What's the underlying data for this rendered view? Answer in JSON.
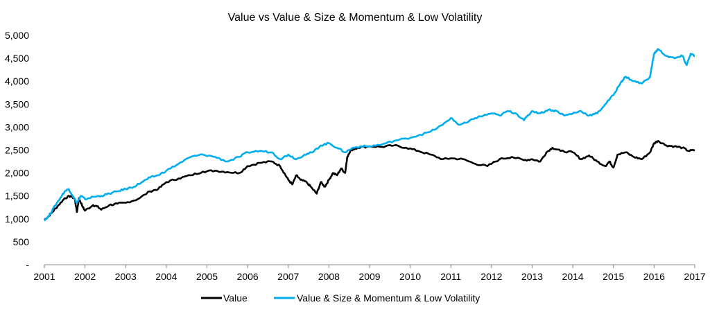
{
  "chart_data": {
    "type": "line",
    "title": "Value vs Value & Size & Momentum & Low Volatility",
    "xlabel": "",
    "ylabel": "",
    "xlim": [
      2001,
      2017
    ],
    "ylim": [
      0,
      5000
    ],
    "x_ticks": [
      2001,
      2002,
      2003,
      2004,
      2005,
      2006,
      2007,
      2008,
      2009,
      2010,
      2011,
      2012,
      2013,
      2014,
      2015,
      2016,
      2017
    ],
    "y_ticks": [
      {
        "value": 0,
        "label": "-"
      },
      {
        "value": 500,
        "label": "500"
      },
      {
        "value": 1000,
        "label": "1,000"
      },
      {
        "value": 1500,
        "label": "1,500"
      },
      {
        "value": 2000,
        "label": "2,000"
      },
      {
        "value": 2500,
        "label": "2,500"
      },
      {
        "value": 3000,
        "label": "3,000"
      },
      {
        "value": 3500,
        "label": "3,500"
      },
      {
        "value": 4000,
        "label": "4,000"
      },
      {
        "value": 4500,
        "label": "4,500"
      },
      {
        "value": 5000,
        "label": "5,000"
      }
    ],
    "grid": false,
    "legend_position": "bottom",
    "series": [
      {
        "name": "Value",
        "color": "#000000",
        "points": [
          [
            2001.0,
            980
          ],
          [
            2001.1,
            1050
          ],
          [
            2001.2,
            1150
          ],
          [
            2001.35,
            1300
          ],
          [
            2001.5,
            1450
          ],
          [
            2001.65,
            1500
          ],
          [
            2001.75,
            1430
          ],
          [
            2001.8,
            1150
          ],
          [
            2001.85,
            1450
          ],
          [
            2001.95,
            1250
          ],
          [
            2002.0,
            1180
          ],
          [
            2002.2,
            1300
          ],
          [
            2002.3,
            1270
          ],
          [
            2002.4,
            1200
          ],
          [
            2002.6,
            1300
          ],
          [
            2002.8,
            1330
          ],
          [
            2003.0,
            1350
          ],
          [
            2003.3,
            1430
          ],
          [
            2003.6,
            1600
          ],
          [
            2003.8,
            1650
          ],
          [
            2004.0,
            1800
          ],
          [
            2004.3,
            1880
          ],
          [
            2004.6,
            1950
          ],
          [
            2004.9,
            2030
          ],
          [
            2005.2,
            2050
          ],
          [
            2005.5,
            2020
          ],
          [
            2005.8,
            2000
          ],
          [
            2006.0,
            2150
          ],
          [
            2006.3,
            2220
          ],
          [
            2006.6,
            2250
          ],
          [
            2006.8,
            2150
          ],
          [
            2006.9,
            2000
          ],
          [
            2007.0,
            1850
          ],
          [
            2007.1,
            1750
          ],
          [
            2007.2,
            1950
          ],
          [
            2007.3,
            1850
          ],
          [
            2007.45,
            1800
          ],
          [
            2007.6,
            1650
          ],
          [
            2007.7,
            1550
          ],
          [
            2007.8,
            1800
          ],
          [
            2007.9,
            1700
          ],
          [
            2008.0,
            1850
          ],
          [
            2008.1,
            2000
          ],
          [
            2008.2,
            1950
          ],
          [
            2008.3,
            2100
          ],
          [
            2008.4,
            2000
          ],
          [
            2008.45,
            2350
          ],
          [
            2008.55,
            2500
          ],
          [
            2008.7,
            2550
          ],
          [
            2009.0,
            2580
          ],
          [
            2009.3,
            2570
          ],
          [
            2009.6,
            2600
          ],
          [
            2009.9,
            2550
          ],
          [
            2010.2,
            2480
          ],
          [
            2010.5,
            2400
          ],
          [
            2010.8,
            2300
          ],
          [
            2011.0,
            2320
          ],
          [
            2011.3,
            2300
          ],
          [
            2011.6,
            2200
          ],
          [
            2011.9,
            2150
          ],
          [
            2012.2,
            2300
          ],
          [
            2012.5,
            2350
          ],
          [
            2012.8,
            2280
          ],
          [
            2013.0,
            2300
          ],
          [
            2013.2,
            2250
          ],
          [
            2013.35,
            2450
          ],
          [
            2013.5,
            2550
          ],
          [
            2013.7,
            2480
          ],
          [
            2014.0,
            2450
          ],
          [
            2014.2,
            2300
          ],
          [
            2014.4,
            2380
          ],
          [
            2014.6,
            2250
          ],
          [
            2014.8,
            2150
          ],
          [
            2014.9,
            2250
          ],
          [
            2015.0,
            2120
          ],
          [
            2015.1,
            2400
          ],
          [
            2015.3,
            2450
          ],
          [
            2015.5,
            2350
          ],
          [
            2015.7,
            2300
          ],
          [
            2015.9,
            2450
          ],
          [
            2016.0,
            2650
          ],
          [
            2016.1,
            2700
          ],
          [
            2016.3,
            2600
          ],
          [
            2016.5,
            2580
          ],
          [
            2016.7,
            2550
          ],
          [
            2016.85,
            2480
          ],
          [
            2017.0,
            2500
          ]
        ]
      },
      {
        "name": "Value & Size & Momentum & Low Volatility",
        "color": "#00AEEF",
        "points": [
          [
            2001.0,
            980
          ],
          [
            2001.1,
            1050
          ],
          [
            2001.2,
            1200
          ],
          [
            2001.35,
            1400
          ],
          [
            2001.5,
            1600
          ],
          [
            2001.6,
            1650
          ],
          [
            2001.7,
            1500
          ],
          [
            2001.8,
            1350
          ],
          [
            2001.9,
            1500
          ],
          [
            2002.0,
            1430
          ],
          [
            2002.2,
            1480
          ],
          [
            2002.4,
            1500
          ],
          [
            2002.6,
            1550
          ],
          [
            2002.8,
            1600
          ],
          [
            2003.0,
            1650
          ],
          [
            2003.2,
            1700
          ],
          [
            2003.4,
            1800
          ],
          [
            2003.6,
            1900
          ],
          [
            2003.8,
            1950
          ],
          [
            2004.0,
            2050
          ],
          [
            2004.3,
            2200
          ],
          [
            2004.6,
            2350
          ],
          [
            2004.9,
            2400
          ],
          [
            2005.2,
            2350
          ],
          [
            2005.5,
            2250
          ],
          [
            2005.8,
            2350
          ],
          [
            2006.0,
            2450
          ],
          [
            2006.3,
            2480
          ],
          [
            2006.6,
            2450
          ],
          [
            2006.8,
            2300
          ],
          [
            2007.0,
            2400
          ],
          [
            2007.2,
            2300
          ],
          [
            2007.4,
            2400
          ],
          [
            2007.6,
            2450
          ],
          [
            2007.8,
            2600
          ],
          [
            2008.0,
            2650
          ],
          [
            2008.2,
            2550
          ],
          [
            2008.4,
            2450
          ],
          [
            2008.6,
            2550
          ],
          [
            2008.8,
            2580
          ],
          [
            2009.0,
            2580
          ],
          [
            2009.3,
            2620
          ],
          [
            2009.6,
            2700
          ],
          [
            2009.9,
            2750
          ],
          [
            2010.2,
            2820
          ],
          [
            2010.5,
            2900
          ],
          [
            2010.8,
            3050
          ],
          [
            2011.0,
            3200
          ],
          [
            2011.2,
            3050
          ],
          [
            2011.4,
            3100
          ],
          [
            2011.6,
            3200
          ],
          [
            2011.8,
            3250
          ],
          [
            2012.0,
            3300
          ],
          [
            2012.2,
            3250
          ],
          [
            2012.4,
            3350
          ],
          [
            2012.6,
            3300
          ],
          [
            2012.8,
            3150
          ],
          [
            2013.0,
            3350
          ],
          [
            2013.2,
            3300
          ],
          [
            2013.4,
            3380
          ],
          [
            2013.6,
            3350
          ],
          [
            2013.8,
            3250
          ],
          [
            2014.0,
            3300
          ],
          [
            2014.2,
            3350
          ],
          [
            2014.4,
            3250
          ],
          [
            2014.6,
            3300
          ],
          [
            2014.8,
            3500
          ],
          [
            2015.0,
            3700
          ],
          [
            2015.2,
            4000
          ],
          [
            2015.3,
            4100
          ],
          [
            2015.5,
            4000
          ],
          [
            2015.7,
            3950
          ],
          [
            2015.9,
            4100
          ],
          [
            2016.0,
            4600
          ],
          [
            2016.1,
            4700
          ],
          [
            2016.3,
            4550
          ],
          [
            2016.5,
            4500
          ],
          [
            2016.7,
            4550
          ],
          [
            2016.8,
            4350
          ],
          [
            2016.9,
            4600
          ],
          [
            2017.0,
            4550
          ]
        ]
      }
    ]
  }
}
